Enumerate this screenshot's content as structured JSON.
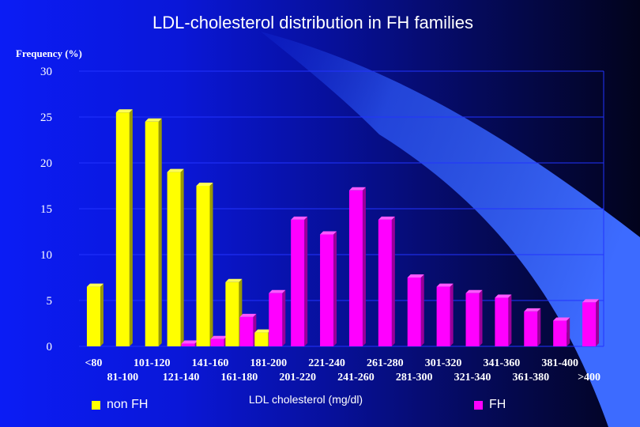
{
  "chart_data": {
    "type": "bar",
    "title": "LDL-cholesterol distribution in FH families",
    "ylabel": "Frequency (%)",
    "xlabel": "LDL cholesterol (mg/dl)",
    "ylim": [
      0,
      30
    ],
    "yticks": [
      0,
      5,
      10,
      15,
      20,
      25,
      30
    ],
    "grid": true,
    "legend_position": "bottom",
    "categories": [
      "<80",
      "81-100",
      "101-120",
      "121-140",
      "141-160",
      "161-180",
      "181-200",
      "201-220",
      "221-240",
      "241-260",
      "261-280",
      "281-300",
      "301-320",
      "321-340",
      "341-360",
      "361-380",
      "381-400",
      ">400"
    ],
    "series": [
      {
        "name": "non FH",
        "color": "#ffff00",
        "values": [
          6.5,
          25.5,
          24.5,
          19,
          17.5,
          7,
          1.5,
          0,
          0,
          0,
          0,
          0,
          0,
          0,
          0,
          0,
          0,
          0
        ]
      },
      {
        "name": "FH",
        "color": "#ff00ff",
        "values": [
          0,
          0,
          0,
          0.3,
          0.8,
          3.2,
          5.8,
          13.8,
          12.2,
          17,
          13.8,
          7.5,
          6.5,
          5.8,
          5.3,
          3.8,
          2.8,
          4.8
        ]
      }
    ]
  }
}
